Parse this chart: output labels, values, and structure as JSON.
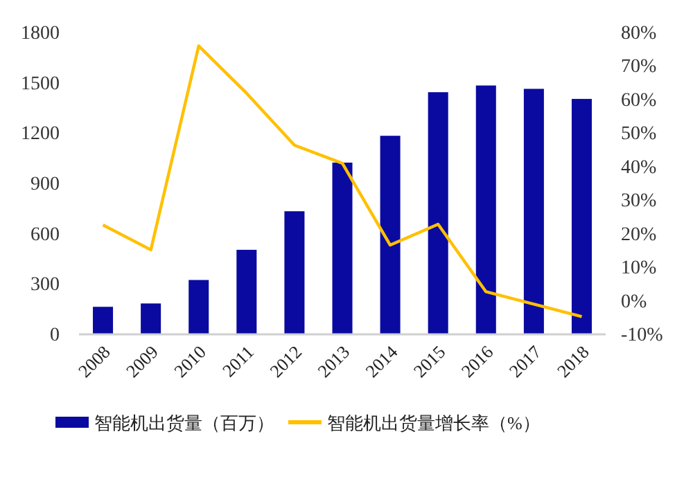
{
  "chart_data": {
    "type": "bar",
    "categories": [
      "2008",
      "2009",
      "2010",
      "2011",
      "2012",
      "2013",
      "2014",
      "2015",
      "2016",
      "2017",
      "2018"
    ],
    "series": [
      {
        "name": "智能机出货量（百万）",
        "color": "#0a0aa0",
        "values": [
          160,
          180,
          320,
          500,
          730,
          1020,
          1180,
          1440,
          1480,
          1460,
          1400
        ]
      },
      {
        "name": "智能机出货量增长率（%）",
        "type": "line",
        "axis": "y2",
        "color": "#ffc000",
        "values": [
          22.4,
          15,
          75.8,
          61.7,
          46.2,
          40.8,
          16.4,
          22.6,
          2.5,
          -1.2,
          -4.9
        ]
      }
    ],
    "ylim": [
      0,
      1800
    ],
    "yticks": [
      0,
      300,
      600,
      900,
      1200,
      1500,
      1800
    ],
    "y2lim": [
      -10,
      80
    ],
    "y2ticks": [
      {
        "value": -10,
        "label": "-10%"
      },
      {
        "value": 0,
        "label": "0%"
      },
      {
        "value": 10,
        "label": "10%"
      },
      {
        "value": 20,
        "label": "20%"
      },
      {
        "value": 30,
        "label": "30%"
      },
      {
        "value": 40,
        "label": "40%"
      },
      {
        "value": 50,
        "label": "50%"
      },
      {
        "value": 60,
        "label": "60%"
      },
      {
        "value": 70,
        "label": "70%"
      },
      {
        "value": 80,
        "label": "80%"
      }
    ],
    "grid": false,
    "legend": "bottom",
    "marker": "none",
    "line_style": "solid"
  }
}
